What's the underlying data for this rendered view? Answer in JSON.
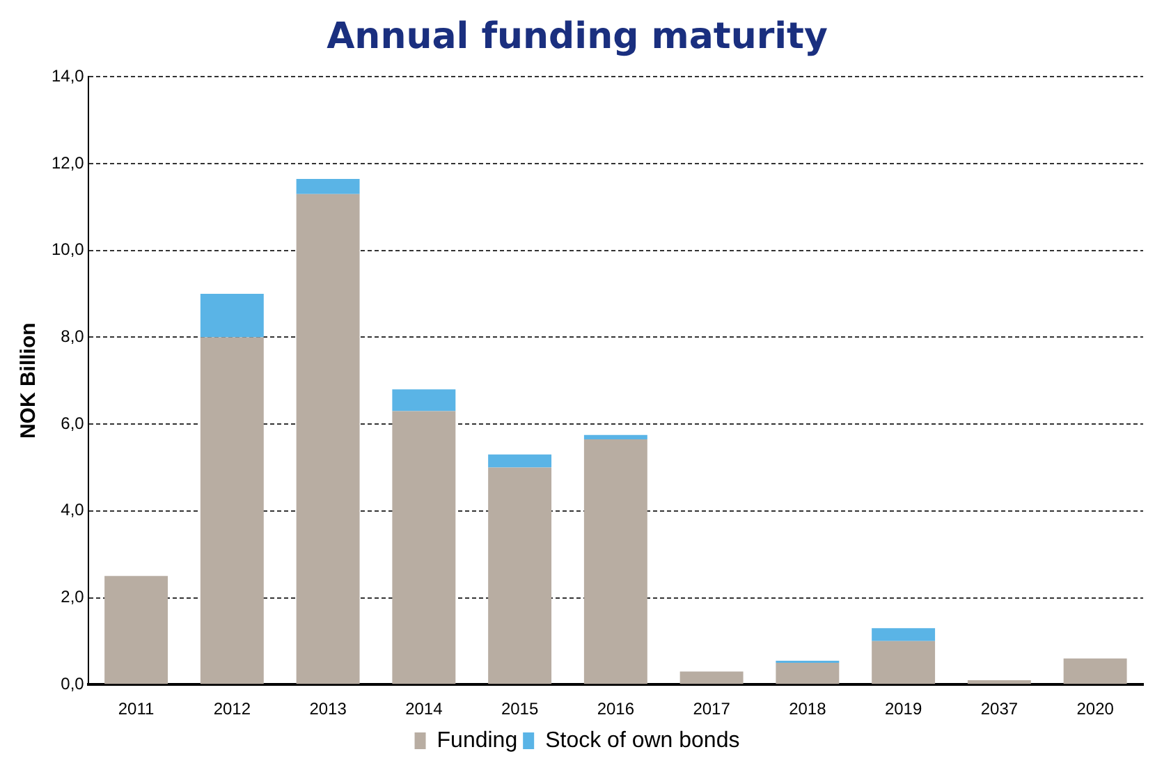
{
  "chart_data": {
    "type": "bar",
    "title": "Annual funding maturity",
    "ylabel": "NOK Billion",
    "stacked": true,
    "legend": "bottom",
    "grid": "y",
    "categories": [
      "2011",
      "2012",
      "2013",
      "2014",
      "2015",
      "2016",
      "2017",
      "2018",
      "2019",
      "2037",
      "2020"
    ],
    "series": [
      {
        "name": "Funding",
        "color": "#b8ada2",
        "values": [
          2.5,
          8.0,
          11.3,
          6.3,
          5.0,
          5.65,
          0.3,
          0.5,
          1.0,
          0.1,
          0.6
        ]
      },
      {
        "name": "Stock of own bonds",
        "color": "#5ab4e6",
        "values": [
          0,
          1.0,
          0.35,
          0.5,
          0.3,
          0.1,
          0,
          0.05,
          0.3,
          0,
          0
        ]
      }
    ],
    "ylim": [
      0,
      14
    ],
    "yticks": [
      {
        "value": 0,
        "label": "0,0"
      },
      {
        "value": 2,
        "label": "2,0"
      },
      {
        "value": 4,
        "label": "4,0"
      },
      {
        "value": 6,
        "label": "6,0"
      },
      {
        "value": 8,
        "label": "8,0"
      },
      {
        "value": 10,
        "label": "10,0"
      },
      {
        "value": 12,
        "label": "12,0"
      },
      {
        "value": 14,
        "label": "14,0"
      }
    ]
  }
}
